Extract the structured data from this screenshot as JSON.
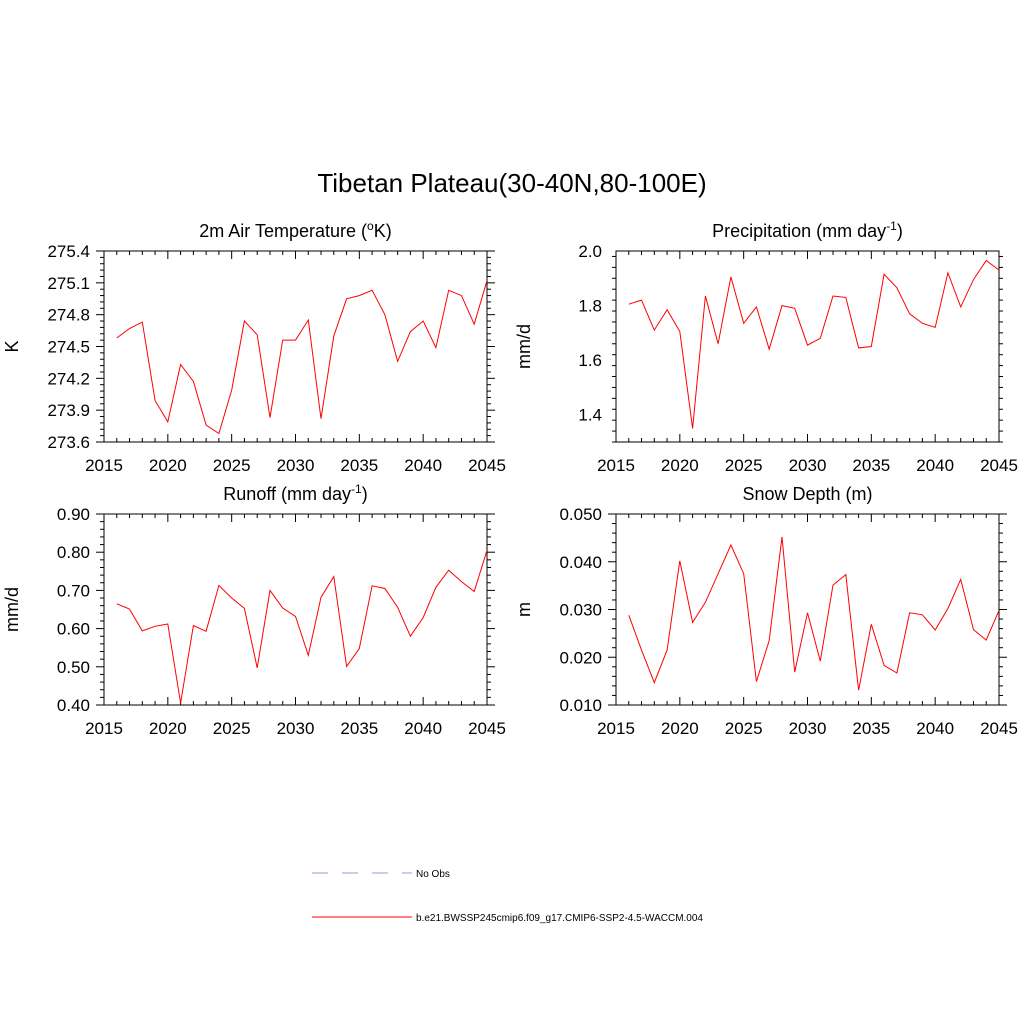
{
  "figure": {
    "title": "Tibetan Plateau(30-40N,80-100E)"
  },
  "legend": {
    "entries": [
      {
        "label": "No Obs",
        "color": "#9999cc",
        "style": "dashed"
      },
      {
        "label": "b.e21.BWSSP245cmip6.f09_g17.CMIP6-SSP2-4.5-WACCM.004",
        "color": "#ff0000",
        "style": "solid"
      }
    ]
  },
  "chart_data": [
    {
      "type": "line",
      "title": "2m Air Temperature (°K)",
      "title_parts": {
        "pre": "2m Air Temperature (",
        "sup": "o",
        "post": "K)"
      },
      "ylabel": "K",
      "xlim": [
        2015,
        2045
      ],
      "ylim": [
        273.6,
        275.4
      ],
      "xticks": [
        "2015",
        "2020",
        "2025",
        "2030",
        "2035",
        "2040",
        "2045"
      ],
      "yticks": [
        "273.6",
        "273.9",
        "274.2",
        "274.5",
        "274.8",
        "275.1",
        "275.4"
      ],
      "series": [
        {
          "color": "#ff0000",
          "x": [
            2016,
            2017,
            2018,
            2019,
            2020,
            2021,
            2022,
            2023,
            2024,
            2025,
            2026,
            2027,
            2028,
            2029,
            2030,
            2031,
            2032,
            2033,
            2034,
            2035,
            2036,
            2037,
            2038,
            2039,
            2040,
            2041,
            2042,
            2043,
            2044,
            2045
          ],
          "y": [
            274.58,
            274.67,
            274.73,
            273.99,
            273.79,
            274.33,
            274.17,
            273.76,
            273.68,
            274.09,
            274.74,
            274.61,
            273.83,
            274.56,
            274.56,
            274.75,
            273.82,
            274.6,
            274.95,
            274.98,
            275.03,
            274.8,
            274.36,
            274.64,
            274.74,
            274.49,
            275.03,
            274.98,
            274.71,
            275.12
          ]
        }
      ]
    },
    {
      "type": "line",
      "title": "Precipitation (mm day-1)",
      "title_parts": {
        "pre": "Precipitation (mm day",
        "sup": "-1",
        "post": ")"
      },
      "ylabel": "mm/d",
      "xlim": [
        2015,
        2045
      ],
      "ylim": [
        1.3,
        2.0
      ],
      "xticks": [
        "2015",
        "2020",
        "2025",
        "2030",
        "2035",
        "2040",
        "2045"
      ],
      "yticks": [
        "1.4",
        "1.6",
        "1.8",
        "2.0"
      ],
      "series": [
        {
          "color": "#ff0000",
          "x": [
            2016,
            2017,
            2018,
            2019,
            2020,
            2021,
            2022,
            2023,
            2024,
            2025,
            2026,
            2027,
            2028,
            2029,
            2030,
            2031,
            2032,
            2033,
            2034,
            2035,
            2036,
            2037,
            2038,
            2039,
            2040,
            2041,
            2042,
            2043,
            2044,
            2045
          ],
          "y": [
            1.805,
            1.82,
            1.71,
            1.785,
            1.705,
            1.35,
            1.835,
            1.66,
            1.905,
            1.735,
            1.795,
            1.64,
            1.8,
            1.79,
            1.655,
            1.68,
            1.835,
            1.83,
            1.645,
            1.65,
            1.915,
            1.865,
            1.77,
            1.735,
            1.72,
            1.92,
            1.795,
            1.895,
            1.965,
            1.93
          ]
        }
      ]
    },
    {
      "type": "line",
      "title": "Runoff (mm day-1)",
      "title_parts": {
        "pre": "Runoff (mm day",
        "sup": "-1",
        "post": ")"
      },
      "ylabel": "mm/d",
      "xlim": [
        2015,
        2045
      ],
      "ylim": [
        0.4,
        0.9
      ],
      "xticks": [
        "2015",
        "2020",
        "2025",
        "2030",
        "2035",
        "2040",
        "2045"
      ],
      "yticks": [
        "0.40",
        "0.50",
        "0.60",
        "0.70",
        "0.80",
        "0.90"
      ],
      "series": [
        {
          "color": "#ff0000",
          "x": [
            2016,
            2017,
            2018,
            2019,
            2020,
            2021,
            2022,
            2023,
            2024,
            2025,
            2026,
            2027,
            2028,
            2029,
            2030,
            2031,
            2032,
            2033,
            2034,
            2035,
            2036,
            2037,
            2038,
            2039,
            2040,
            2041,
            2042,
            2043,
            2044,
            2045
          ],
          "y": [
            0.665,
            0.651,
            0.594,
            0.606,
            0.612,
            0.405,
            0.608,
            0.593,
            0.713,
            0.68,
            0.653,
            0.497,
            0.7,
            0.654,
            0.632,
            0.53,
            0.682,
            0.736,
            0.501,
            0.548,
            0.712,
            0.705,
            0.656,
            0.58,
            0.629,
            0.708,
            0.753,
            0.723,
            0.697,
            0.805
          ]
        }
      ]
    },
    {
      "type": "line",
      "title": "Snow Depth (m)",
      "title_parts": {
        "pre": "Snow Depth (m)",
        "sup": "",
        "post": ""
      },
      "ylabel": "m",
      "xlim": [
        2015,
        2045
      ],
      "ylim": [
        0.01,
        0.05
      ],
      "xticks": [
        "2015",
        "2020",
        "2025",
        "2030",
        "2035",
        "2040",
        "2045"
      ],
      "yticks": [
        "0.010",
        "0.020",
        "0.030",
        "0.040",
        "0.050"
      ],
      "series": [
        {
          "color": "#ff0000",
          "x": [
            2016,
            2017,
            2018,
            2019,
            2020,
            2021,
            2022,
            2023,
            2024,
            2025,
            2026,
            2027,
            2028,
            2029,
            2030,
            2031,
            2032,
            2033,
            2034,
            2035,
            2036,
            2037,
            2038,
            2039,
            2040,
            2041,
            2042,
            2043,
            2044,
            2045
          ],
          "y": [
            0.0288,
            0.0215,
            0.0147,
            0.0215,
            0.0402,
            0.0273,
            0.0315,
            0.0375,
            0.0435,
            0.0375,
            0.0149,
            0.0235,
            0.0452,
            0.0169,
            0.0293,
            0.0192,
            0.0351,
            0.0373,
            0.0131,
            0.0269,
            0.0183,
            0.0167,
            0.0293,
            0.0289,
            0.0257,
            0.0302,
            0.0363,
            0.0258,
            0.0236,
            0.0298
          ]
        }
      ]
    }
  ]
}
